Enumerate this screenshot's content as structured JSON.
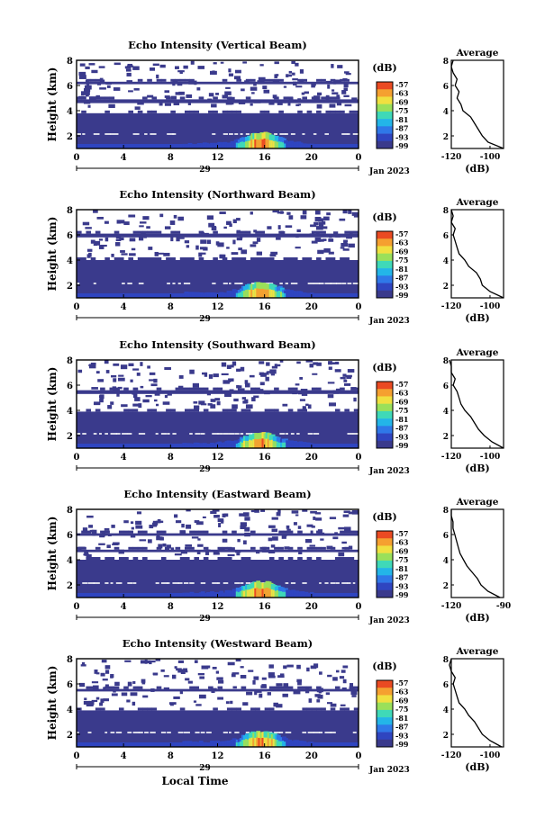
{
  "common": {
    "date_label": "Jan 2023",
    "date_day": "29",
    "x_axis_title": "Local Time",
    "y_axis_title": "Height (km)",
    "colorbar_unit": "(dB)",
    "avg_title": "Average",
    "avg_xunit": "(dB)",
    "colorbar_ticks": [
      "-57",
      "-63",
      "-69",
      "-75",
      "-81",
      "-87",
      "-93",
      "-99"
    ],
    "colormap": [
      "#3a3a8c",
      "#2f45c0",
      "#2f78e8",
      "#23b5e8",
      "#3fd9b8",
      "#9ae05a",
      "#f0e040",
      "#f5a030",
      "#ea4a22"
    ],
    "background_color": "#3a3a8c"
  },
  "chart_data": [
    {
      "type": "heatmap",
      "title": "Echo Intensity (Vertical Beam)",
      "xlabel": "",
      "ylabel": "Height (km)",
      "x_ticks": [
        "0",
        "4",
        "8",
        "12",
        "16",
        "20",
        "0"
      ],
      "y_ticks": [
        "2",
        "4",
        "6",
        "8"
      ],
      "xlim": [
        0,
        24
      ],
      "ylim": [
        1,
        8
      ],
      "strong_echo_layers_km": [
        [
          1.0,
          3.8
        ],
        [
          4.6,
          4.9
        ],
        [
          6.1,
          6.3
        ]
      ],
      "enhanced_echo_hours": [
        12,
        20
      ],
      "average_profile": {
        "title": "Average",
        "xlabel": "(dB)",
        "x_ticks": [
          "-120",
          "-100"
        ],
        "xlim": [
          -120,
          -93
        ],
        "ylim": [
          1,
          8
        ],
        "y_ticks": [
          "2",
          "4",
          "6",
          "8"
        ],
        "height_km": [
          1.0,
          1.5,
          2.0,
          2.5,
          3.0,
          3.5,
          4.0,
          4.5,
          5.0,
          5.5,
          6.0,
          6.5,
          7.0,
          7.5,
          8.0
        ],
        "value_db": [
          -93,
          -101,
          -104,
          -106,
          -108,
          -110,
          -114,
          -115,
          -117,
          -116,
          -118,
          -117,
          -119,
          -120,
          -119
        ]
      }
    },
    {
      "type": "heatmap",
      "title": "Echo Intensity (Northward Beam)",
      "xlabel": "",
      "ylabel": "Height (km)",
      "x_ticks": [
        "0",
        "4",
        "8",
        "12",
        "16",
        "20",
        "0"
      ],
      "y_ticks": [
        "2",
        "4",
        "6",
        "8"
      ],
      "xlim": [
        0,
        24
      ],
      "ylim": [
        1,
        8
      ],
      "strong_echo_layers_km": [
        [
          1.0,
          4.0
        ],
        [
          5.8,
          6.1
        ]
      ],
      "enhanced_echo_hours": [
        12,
        20
      ],
      "average_profile": {
        "title": "Average",
        "xlabel": "(dB)",
        "x_ticks": [
          "-120",
          "-100"
        ],
        "xlim": [
          -120,
          -93
        ],
        "ylim": [
          1,
          8
        ],
        "y_ticks": [
          "2",
          "4",
          "6",
          "8"
        ],
        "height_km": [
          1.0,
          1.5,
          2.0,
          2.5,
          3.0,
          3.5,
          4.0,
          4.5,
          5.0,
          5.5,
          6.0,
          6.5,
          7.0,
          7.5,
          8.0
        ],
        "value_db": [
          -93,
          -100,
          -104,
          -105,
          -107,
          -111,
          -113,
          -116,
          -117,
          -118,
          -119,
          -118,
          -120,
          -119,
          -120
        ]
      }
    },
    {
      "type": "heatmap",
      "title": "Echo Intensity (Southward Beam)",
      "xlabel": "",
      "ylabel": "Height (km)",
      "x_ticks": [
        "0",
        "4",
        "8",
        "12",
        "16",
        "20",
        "0"
      ],
      "y_ticks": [
        "2",
        "4",
        "6",
        "8"
      ],
      "xlim": [
        0,
        24
      ],
      "ylim": [
        1,
        8
      ],
      "strong_echo_layers_km": [
        [
          1.0,
          3.9
        ],
        [
          5.3,
          5.6
        ]
      ],
      "enhanced_echo_hours": [
        12,
        20
      ],
      "average_profile": {
        "title": "Average",
        "xlabel": "(dB)",
        "x_ticks": [
          "-120",
          "-100"
        ],
        "xlim": [
          -120,
          -93
        ],
        "ylim": [
          1,
          8
        ],
        "y_ticks": [
          "2",
          "4",
          "6",
          "8"
        ],
        "height_km": [
          1.0,
          1.5,
          2.0,
          2.5,
          3.0,
          3.5,
          4.0,
          4.5,
          5.0,
          5.5,
          6.0,
          6.5,
          7.0,
          7.5,
          8.0
        ],
        "value_db": [
          -93,
          -99,
          -103,
          -106,
          -108,
          -110,
          -113,
          -115,
          -116,
          -117,
          -119,
          -118,
          -120,
          -120,
          -121
        ]
      }
    },
    {
      "type": "heatmap",
      "title": "Echo Intensity (Eastward Beam)",
      "xlabel": "",
      "ylabel": "Height (km)",
      "x_ticks": [
        "0",
        "4",
        "8",
        "12",
        "16",
        "20",
        "0"
      ],
      "y_ticks": [
        "2",
        "4",
        "6",
        "8"
      ],
      "xlim": [
        0,
        24
      ],
      "ylim": [
        1,
        8
      ],
      "strong_echo_layers_km": [
        [
          1.0,
          4.0
        ],
        [
          4.6,
          4.8
        ],
        [
          5.9,
          6.1
        ]
      ],
      "enhanced_echo_hours": [
        12,
        20
      ],
      "average_profile": {
        "title": "Average",
        "xlabel": "(dB)",
        "x_ticks": [
          "-120",
          "-90"
        ],
        "xlim": [
          -120,
          -90
        ],
        "ylim": [
          1,
          8
        ],
        "y_ticks": [
          "2",
          "4",
          "6",
          "8"
        ],
        "height_km": [
          1.0,
          1.5,
          2.0,
          2.5,
          3.0,
          3.5,
          4.0,
          4.5,
          5.0,
          5.5,
          6.0,
          6.5,
          7.0,
          7.5,
          8.0
        ],
        "value_db": [
          -92,
          -99,
          -103,
          -105,
          -108,
          -111,
          -113,
          -115,
          -116,
          -117,
          -118,
          -119,
          -119,
          -120,
          -120
        ]
      }
    },
    {
      "type": "heatmap",
      "title": "Echo Intensity (Westward Beam)",
      "xlabel": "Local Time",
      "ylabel": "Height (km)",
      "x_ticks": [
        "0",
        "4",
        "8",
        "12",
        "16",
        "20",
        "0"
      ],
      "y_ticks": [
        "2",
        "4",
        "6",
        "8"
      ],
      "xlim": [
        0,
        24
      ],
      "ylim": [
        1,
        8
      ],
      "strong_echo_layers_km": [
        [
          1.0,
          3.9
        ],
        [
          5.4,
          5.6
        ]
      ],
      "enhanced_echo_hours": [
        12,
        20
      ],
      "average_profile": {
        "title": "Average",
        "xlabel": "(dB)",
        "x_ticks": [
          "-120",
          "-100"
        ],
        "xlim": [
          -120,
          -93
        ],
        "ylim": [
          1,
          8
        ],
        "y_ticks": [
          "2",
          "4",
          "6",
          "8"
        ],
        "height_km": [
          1.0,
          1.5,
          2.0,
          2.5,
          3.0,
          3.5,
          4.0,
          4.5,
          5.0,
          5.5,
          6.0,
          6.5,
          7.0,
          7.5,
          8.0
        ],
        "value_db": [
          -94,
          -100,
          -104,
          -106,
          -108,
          -111,
          -113,
          -116,
          -117,
          -118,
          -119,
          -118,
          -120,
          -121,
          -120
        ]
      }
    }
  ]
}
